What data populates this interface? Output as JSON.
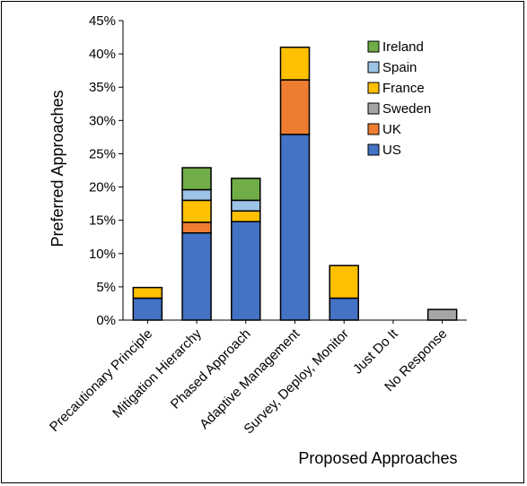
{
  "chart_data": {
    "type": "bar",
    "stacked": true,
    "title": "",
    "xlabel": "Proposed Approaches",
    "ylabel": "Preferred Approaches",
    "ylim": [
      0,
      45
    ],
    "y_ticks": [
      "0%",
      "5%",
      "10%",
      "15%",
      "20%",
      "25%",
      "30%",
      "35%",
      "40%",
      "45%"
    ],
    "grid": false,
    "legend_position": "top-right",
    "categories": [
      "Precautionary Principle",
      "Mitigation Hierarchy",
      "Phased Approach",
      "Adaptive Management",
      "Survey, Deploy, Monitor",
      "Just Do It",
      "No Response"
    ],
    "series": [
      {
        "name": "US",
        "color": "#4472C4",
        "values": [
          3.3,
          13.1,
          14.8,
          27.9,
          3.3,
          0,
          0
        ]
      },
      {
        "name": "UK",
        "color": "#ED7D31",
        "values": [
          0,
          1.6,
          0,
          8.2,
          0,
          0,
          0
        ]
      },
      {
        "name": "Sweden",
        "color": "#A5A5A5",
        "values": [
          0,
          0,
          0,
          0,
          0,
          0,
          1.6
        ]
      },
      {
        "name": "France",
        "color": "#FFC000",
        "values": [
          1.6,
          3.3,
          1.6,
          4.9,
          4.9,
          0,
          0
        ]
      },
      {
        "name": "Spain",
        "color": "#9DC3E6",
        "values": [
          0,
          1.6,
          1.6,
          0,
          0,
          0,
          0
        ]
      },
      {
        "name": "Ireland",
        "color": "#70AD47",
        "values": [
          0,
          3.3,
          3.3,
          0,
          0,
          0,
          0
        ]
      }
    ],
    "legend_order": [
      "Ireland",
      "Spain",
      "France",
      "Sweden",
      "UK",
      "US"
    ]
  }
}
